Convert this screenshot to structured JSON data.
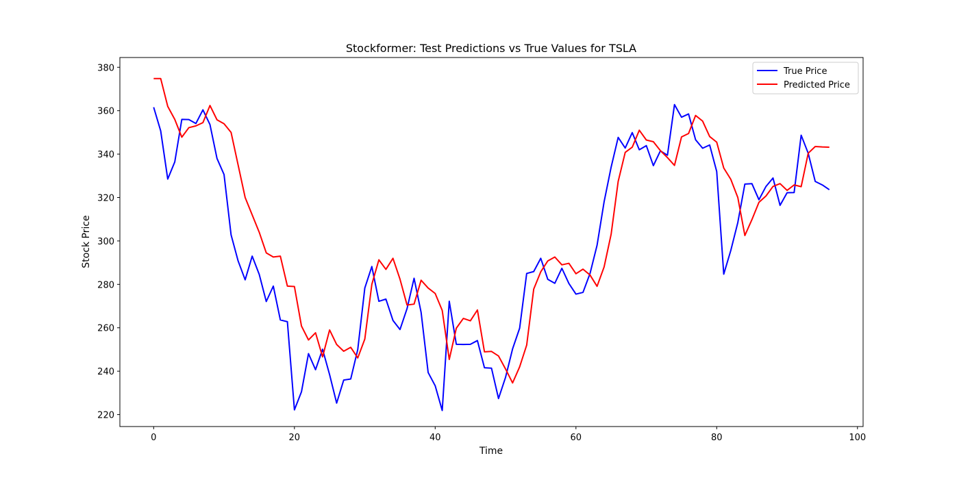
{
  "chart_data": {
    "type": "line",
    "title": "Stockformer: Test Predictions vs True Values for TSLA",
    "xlabel": "Time",
    "ylabel": "Stock Price",
    "xlim": [
      -4.8,
      100.8
    ],
    "ylim": [
      214.5,
      384.5
    ],
    "xticks": [
      0,
      20,
      40,
      60,
      80,
      100
    ],
    "yticks": [
      220,
      240,
      260,
      280,
      300,
      320,
      340,
      360,
      380
    ],
    "grid": false,
    "legend_position": "top-right",
    "series": [
      {
        "name": "True Price",
        "color": "#0000ff",
        "values": [
          361.6,
          350.7,
          328.5,
          336.4,
          356.0,
          355.9,
          354.1,
          360.4,
          353.6,
          338.0,
          330.6,
          302.8,
          290.8,
          282.1,
          293.0,
          284.6,
          272.1,
          279.2,
          263.6,
          262.8,
          222.2,
          230.5,
          248.1,
          240.7,
          250.1,
          238.4,
          225.3,
          235.9,
          236.4,
          250.0,
          278.3,
          288.2,
          272.2,
          273.2,
          263.4,
          259.2,
          268.8,
          282.8,
          267.1,
          239.4,
          233.3,
          221.9,
          272.2,
          252.4,
          252.3,
          252.4,
          254.1,
          241.6,
          241.4,
          227.4,
          237.2,
          250.3,
          259.8,
          285.0,
          285.9,
          292.0,
          282.3,
          280.5,
          287.4,
          280.4,
          275.5,
          276.3,
          285.0,
          298.0,
          318.0,
          334.0,
          347.7,
          342.8,
          349.9,
          342.0,
          343.9,
          334.7,
          341.5,
          339.5,
          362.8,
          357.0,
          358.5,
          346.6,
          342.7,
          344.2,
          332.0,
          284.7,
          295.6,
          308.5,
          326.2,
          326.4,
          319.0,
          325.1,
          329.0,
          316.4,
          322.2,
          322.3,
          348.7,
          340.4,
          327.4,
          325.8,
          323.6
        ]
      },
      {
        "name": "Predicted Price",
        "color": "#ff0000",
        "values": [
          374.8,
          374.8,
          362.0,
          356.0,
          347.8,
          352.2,
          353.0,
          354.5,
          362.4,
          355.8,
          354.0,
          350.0,
          335.0,
          320.0,
          312.0,
          304.0,
          294.5,
          292.6,
          293.0,
          279.2,
          279.0,
          260.8,
          254.4,
          257.7,
          246.6,
          259.0,
          252.3,
          249.2,
          251.0,
          246.1,
          254.8,
          280.0,
          291.3,
          286.9,
          292.0,
          282.4,
          270.5,
          270.9,
          281.9,
          278.3,
          275.8,
          268.0,
          245.4,
          259.8,
          264.3,
          263.2,
          268.2,
          248.9,
          249.1,
          247.0,
          241.0,
          234.6,
          242.0,
          252.0,
          277.8,
          285.8,
          290.8,
          292.6,
          289.0,
          289.7,
          284.9,
          287.0,
          284.3,
          279.1,
          288.0,
          303.1,
          327.4,
          340.8,
          343.2,
          351.0,
          346.5,
          345.7,
          341.6,
          338.4,
          334.8,
          347.9,
          349.5,
          357.8,
          355.2,
          348.1,
          345.5,
          333.6,
          328.4,
          320.0,
          302.5,
          309.8,
          317.8,
          320.7,
          325.1,
          326.4,
          323.3,
          325.8,
          325.0,
          340.4,
          343.5,
          343.3,
          343.2
        ]
      }
    ]
  }
}
